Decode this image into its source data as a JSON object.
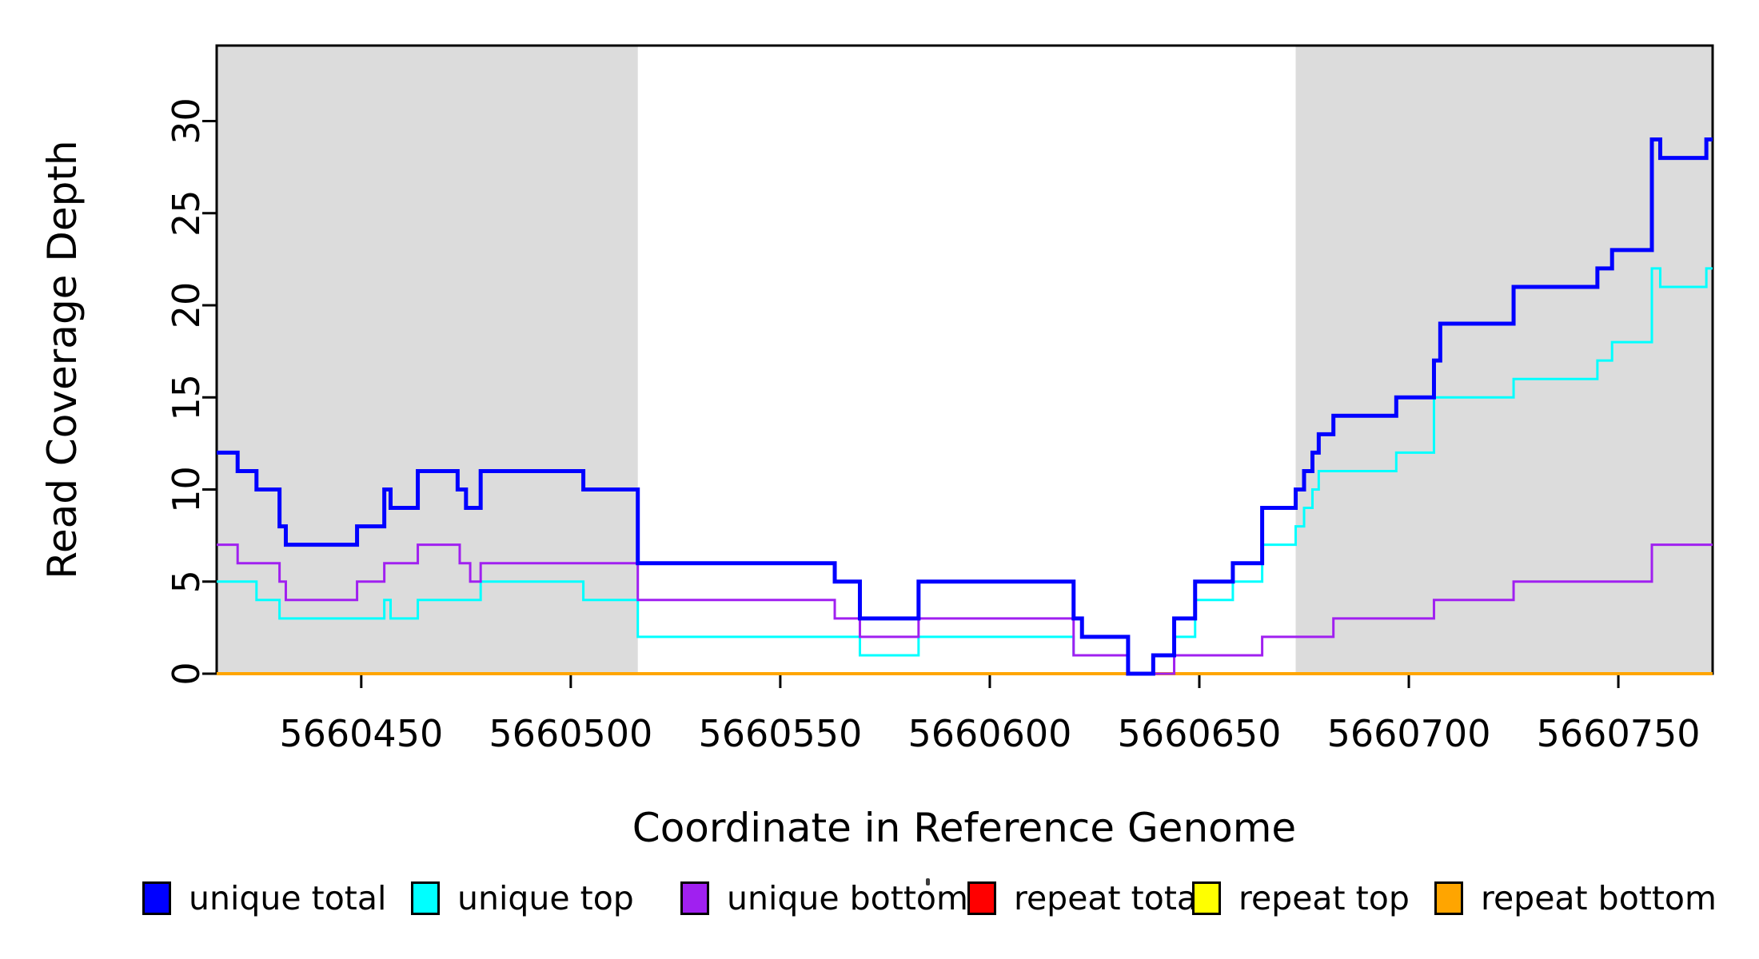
{
  "chart_data": {
    "type": "step-line",
    "title": "",
    "xlabel": "Coordinate in Reference Genome",
    "ylabel": "Read Coverage Depth",
    "xlim": [
      5660415.5,
      5660772.5
    ],
    "ylim": [
      0,
      34.1
    ],
    "x_ticks": [
      5660450,
      5660500,
      5660550,
      5660600,
      5660650,
      5660700,
      5660750
    ],
    "y_ticks": [
      0,
      5,
      10,
      15,
      20,
      25,
      30
    ],
    "grid": false,
    "axis_color": "#000000",
    "shade_color": "#DCDCDC",
    "shaded_regions": [
      {
        "x0": 5660415.5,
        "x1": 5660516
      },
      {
        "x0": 5660673,
        "x1": 5660772.5
      }
    ],
    "legend_position": "bottom",
    "draw_order": [
      3,
      4,
      5,
      1,
      2,
      0
    ],
    "series": [
      {
        "name": "unique total",
        "color": "#0000FF",
        "line_width": 5,
        "steps": [
          [
            5660415.5,
            12
          ],
          [
            5660420.5,
            11
          ],
          [
            5660425,
            10
          ],
          [
            5660430.5,
            8
          ],
          [
            5660432,
            7
          ],
          [
            5660449,
            8
          ],
          [
            5660455.5,
            10
          ],
          [
            5660457,
            9
          ],
          [
            5660463.5,
            11
          ],
          [
            5660473,
            10
          ],
          [
            5660475,
            9
          ],
          [
            5660478.5,
            11
          ],
          [
            5660503,
            10
          ],
          [
            5660516,
            6
          ],
          [
            5660563,
            5
          ],
          [
            5660569,
            3
          ],
          [
            5660583,
            5
          ],
          [
            5660620,
            3
          ],
          [
            5660622,
            2
          ],
          [
            5660633,
            0
          ],
          [
            5660639,
            1
          ],
          [
            5660644,
            3
          ],
          [
            5660649,
            5
          ],
          [
            5660658,
            6
          ],
          [
            5660665,
            9
          ],
          [
            5660673,
            10
          ],
          [
            5660675,
            11
          ],
          [
            5660677,
            12
          ],
          [
            5660678.5,
            13
          ],
          [
            5660682,
            14
          ],
          [
            5660697,
            15
          ],
          [
            5660706,
            17
          ],
          [
            5660707.5,
            19
          ],
          [
            5660725,
            21
          ],
          [
            5660745,
            22
          ],
          [
            5660748.5,
            23
          ],
          [
            5660758,
            29
          ],
          [
            5660760,
            28
          ],
          [
            5660771,
            29
          ]
        ]
      },
      {
        "name": "unique top",
        "color": "#00FFFF",
        "line_width": 3,
        "steps": [
          [
            5660415.5,
            5
          ],
          [
            5660425,
            4
          ],
          [
            5660430.5,
            3
          ],
          [
            5660455.5,
            4
          ],
          [
            5660457,
            3
          ],
          [
            5660463.5,
            4
          ],
          [
            5660478.5,
            5
          ],
          [
            5660503,
            4
          ],
          [
            5660516,
            2
          ],
          [
            5660569,
            1
          ],
          [
            5660583,
            2
          ],
          [
            5660620,
            1
          ],
          [
            5660633,
            0
          ],
          [
            5660639,
            1
          ],
          [
            5660644,
            2
          ],
          [
            5660649,
            4
          ],
          [
            5660658,
            5
          ],
          [
            5660665,
            7
          ],
          [
            5660673,
            8
          ],
          [
            5660675,
            9
          ],
          [
            5660677,
            10
          ],
          [
            5660678.5,
            11
          ],
          [
            5660697,
            12
          ],
          [
            5660706,
            15
          ],
          [
            5660725,
            16
          ],
          [
            5660745,
            17
          ],
          [
            5660748.5,
            18
          ],
          [
            5660758,
            22
          ],
          [
            5660760,
            21
          ],
          [
            5660771,
            22
          ]
        ]
      },
      {
        "name": "unique bottom",
        "color": "#A020F0",
        "line_width": 3,
        "steps": [
          [
            5660415.5,
            7
          ],
          [
            5660420.5,
            6
          ],
          [
            5660430.5,
            5
          ],
          [
            5660432,
            4
          ],
          [
            5660449,
            5
          ],
          [
            5660455.5,
            6
          ],
          [
            5660463.5,
            7
          ],
          [
            5660473.5,
            6
          ],
          [
            5660476,
            5
          ],
          [
            5660478.5,
            6
          ],
          [
            5660516,
            4
          ],
          [
            5660563,
            3
          ],
          [
            5660569,
            2
          ],
          [
            5660583,
            3
          ],
          [
            5660620,
            1
          ],
          [
            5660633,
            0
          ],
          [
            5660644,
            1
          ],
          [
            5660665,
            2
          ],
          [
            5660682,
            3
          ],
          [
            5660706,
            4
          ],
          [
            5660725,
            5
          ],
          [
            5660758,
            7
          ]
        ]
      },
      {
        "name": "repeat total",
        "color": "#FF0000",
        "line_width": 3,
        "steps": [
          [
            5660415.5,
            0
          ]
        ]
      },
      {
        "name": "repeat top",
        "color": "#FFFF00",
        "line_width": 3,
        "steps": [
          [
            5660415.5,
            0
          ]
        ]
      },
      {
        "name": "repeat bottom",
        "color": "#FFA500",
        "line_width": 4,
        "steps": [
          [
            5660415.5,
            0
          ]
        ]
      }
    ]
  }
}
